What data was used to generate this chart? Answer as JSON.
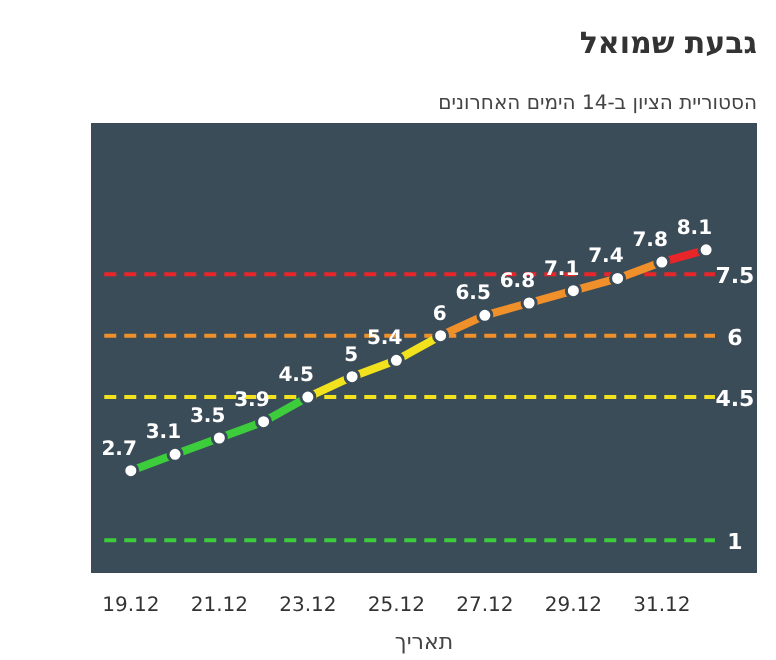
{
  "chart_data": {
    "type": "line",
    "title": "גבעת שמואל",
    "subtitle": "הסטוריית הציון ב-14 הימים האחרונים",
    "xlabel": "תאריך",
    "categories": [
      "19.12",
      null,
      "21.12",
      null,
      "23.12",
      null,
      "25.12",
      null,
      "27.12",
      null,
      "29.12",
      null,
      "31.12",
      null
    ],
    "series": [
      {
        "color": "#3ccc3c",
        "values": [
          2.7,
          3.1,
          3.5,
          3.9,
          4.5,
          null,
          null,
          null,
          null,
          null,
          null,
          null,
          null,
          null
        ],
        "value_labels": [
          "2.7",
          "3.1",
          "3.5",
          "3.9",
          "4.5",
          null,
          null,
          null,
          null,
          null,
          null,
          null,
          null,
          null
        ]
      },
      {
        "color": "#f2e21e",
        "values": [
          null,
          null,
          null,
          null,
          4.5,
          5,
          5.4,
          6,
          null,
          null,
          null,
          null,
          null,
          null
        ],
        "value_labels": [
          null,
          null,
          null,
          null,
          null,
          "5",
          "5.4",
          "6",
          null,
          null,
          null,
          null,
          null,
          null
        ]
      },
      {
        "color": "#f0902a",
        "values": [
          null,
          null,
          null,
          null,
          null,
          null,
          null,
          6,
          6.5,
          6.8,
          7.1,
          7.4,
          7.8,
          null
        ],
        "value_labels": [
          null,
          null,
          null,
          null,
          null,
          null,
          null,
          null,
          "6.5",
          "6.8",
          "7.1",
          "7.4",
          "7.8",
          null
        ]
      },
      {
        "color": "#e8262a",
        "values": [
          null,
          null,
          null,
          null,
          null,
          null,
          null,
          null,
          null,
          null,
          null,
          null,
          7.8,
          8.1
        ],
        "value_labels": [
          null,
          null,
          null,
          null,
          null,
          null,
          null,
          null,
          null,
          null,
          null,
          null,
          null,
          "8.1"
        ]
      }
    ],
    "ref_lines": [
      {
        "axis": "y",
        "value": 1,
        "label": "1",
        "color": "#3ccc3c",
        "line_style": "dashed"
      },
      {
        "axis": "y",
        "value": 4.5,
        "label": "4.5",
        "color": "#f2e21e",
        "line_style": "dashed"
      },
      {
        "axis": "y",
        "value": 6,
        "label": "6",
        "color": "#f0902a",
        "line_style": "dashed"
      },
      {
        "axis": "y",
        "value": 7.5,
        "label": "7.5",
        "color": "#e8262a",
        "line_style": "dashed"
      }
    ],
    "ylim": [
      0.2,
      11.2
    ],
    "tick_labels": "x",
    "marker": "circle",
    "line_style": "solid"
  }
}
